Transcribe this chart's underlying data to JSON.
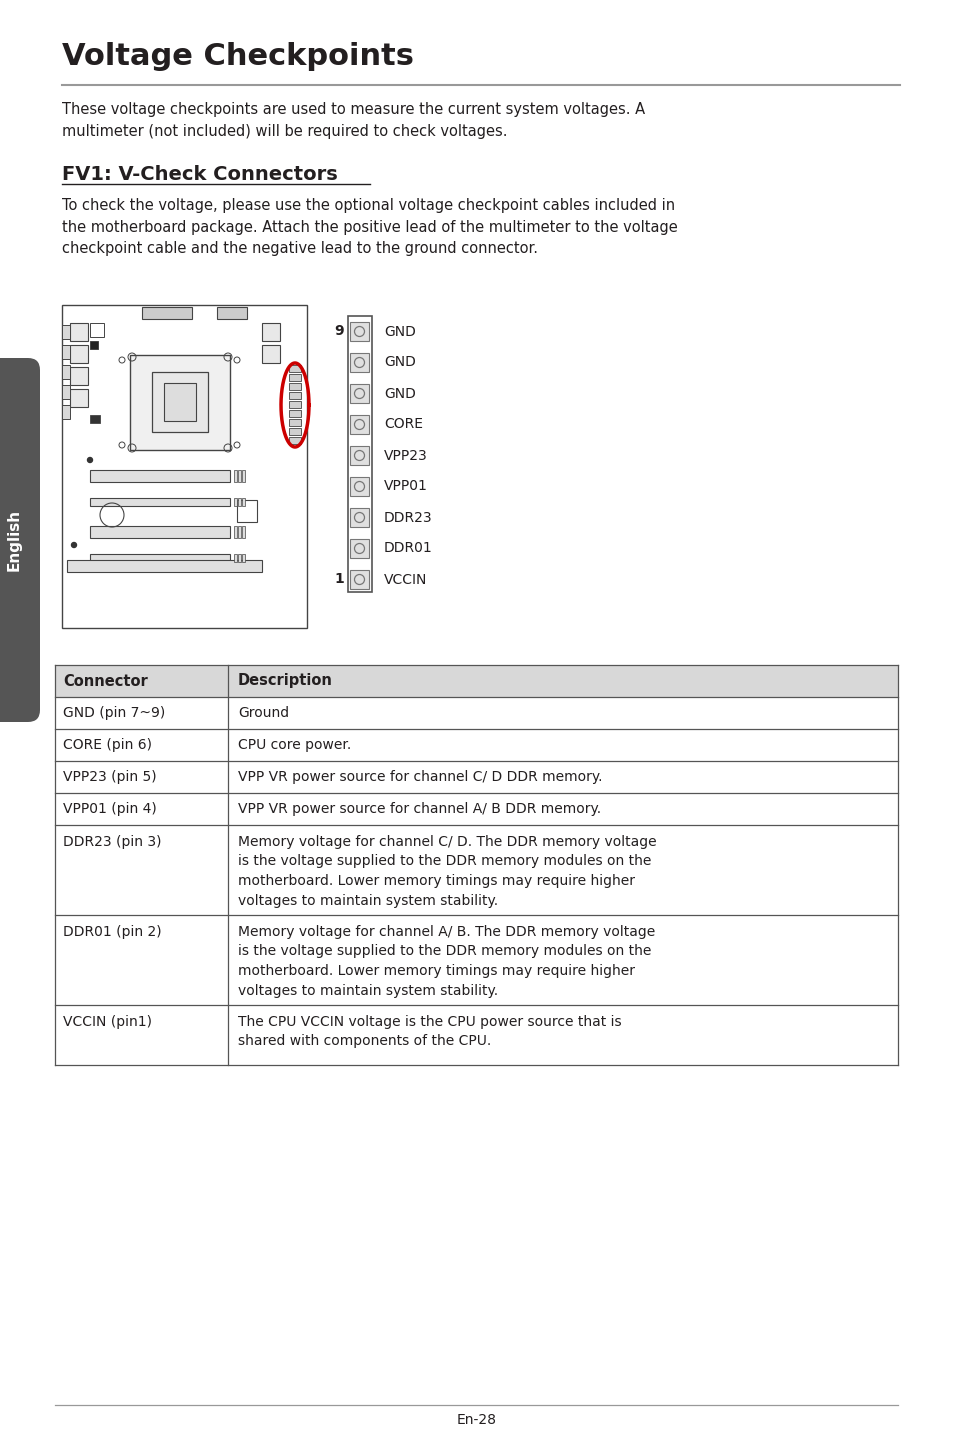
{
  "title": "Voltage Checkpoints",
  "title_fontsize": 22,
  "section_title": "FV1: V-Check Connectors",
  "section_title_fontsize": 14,
  "intro_text": "These voltage checkpoints are used to measure the current system voltages. A\nmultimeter (not included) will be required to check voltages.",
  "section_text": "To check the voltage, please use the optional voltage checkpoint cables included in\nthe motherboard package. Attach the positive lead of the multimeter to the voltage\ncheckpoint cable and the negative lead to the ground connector.",
  "pin_labels": [
    "GND",
    "GND",
    "GND",
    "CORE",
    "VPP23",
    "VPP01",
    "DDR23",
    "DDR01",
    "VCCIN"
  ],
  "pin_numbers_top": "9",
  "pin_numbers_bottom": "1",
  "table_headers": [
    "Connector",
    "Description"
  ],
  "table_rows": [
    [
      "GND (pin 7~9)",
      "Ground"
    ],
    [
      "CORE (pin 6)",
      "CPU core power."
    ],
    [
      "VPP23 (pin 5)",
      "VPP VR power source for channel C/ D DDR memory."
    ],
    [
      "VPP01 (pin 4)",
      "VPP VR power source for channel A/ B DDR memory."
    ],
    [
      "DDR23 (pin 3)",
      "Memory voltage for channel C/ D. The DDR memory voltage\nis the voltage supplied to the DDR memory modules on the\nmotherboard. Lower memory timings may require higher\nvoltages to maintain system stability."
    ],
    [
      "DDR01 (pin 2)",
      "Memory voltage for channel A/ B. The DDR memory voltage\nis the voltage supplied to the DDR memory modules on the\nmotherboard. Lower memory timings may require higher\nvoltages to maintain system stability."
    ],
    [
      "VCCIN (pin1)",
      "The CPU VCCIN voltage is the CPU power source that is\nshared with components of the CPU."
    ]
  ],
  "footer_text": "En-28",
  "bg_color": "#ffffff",
  "text_color": "#231f20",
  "table_border_color": "#555555",
  "header_bg_color": "#d8d8d8",
  "sidebar_color": "#555555",
  "title_line_color": "#999999"
}
